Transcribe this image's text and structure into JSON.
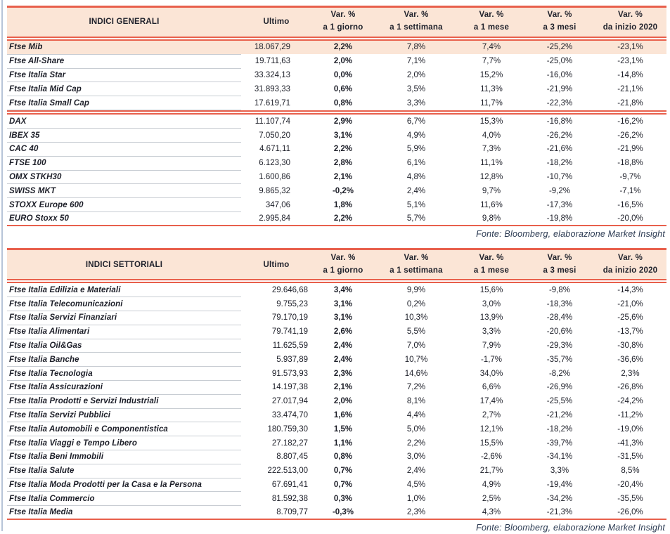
{
  "colors": {
    "accent_red": "#e8604c",
    "header_peach": "#fbe5d6",
    "text_ink": "#1c1e28",
    "fonte_navy": "#2b3a52",
    "row_separator": "#c8cdd3"
  },
  "tables": [
    {
      "title": "INDICI GENERALI",
      "headers": {
        "ultimo": "Ultimo",
        "vars": [
          {
            "line1": "Var. %",
            "line2": "a 1 giorno"
          },
          {
            "line1": "Var. %",
            "line2": "a 1 settimana"
          },
          {
            "line1": "Var. %",
            "line2": "a 1 mese"
          },
          {
            "line1": "Var. %",
            "line2": "a 3 mesi"
          },
          {
            "line1": "Var. %",
            "line2": "da inizio 2020"
          }
        ]
      },
      "groups": [
        [
          {
            "name": "Ftse Mib",
            "ultimo": "18.067,29",
            "vars": [
              "2,2%",
              "7,8%",
              "7,4%",
              "-25,2%",
              "-23,1%"
            ],
            "highlight": true
          },
          {
            "name": "Ftse All-Share",
            "ultimo": "19.711,63",
            "vars": [
              "2,0%",
              "7,1%",
              "7,7%",
              "-25,0%",
              "-23,1%"
            ]
          },
          {
            "name": "Ftse Italia Star",
            "ultimo": "33.324,13",
            "vars": [
              "0,0%",
              "2,0%",
              "15,2%",
              "-16,0%",
              "-14,8%"
            ]
          },
          {
            "name": "Ftse Italia Mid Cap",
            "ultimo": "31.893,33",
            "vars": [
              "0,6%",
              "3,5%",
              "11,3%",
              "-21,9%",
              "-21,1%"
            ]
          },
          {
            "name": "Ftse Italia Small Cap",
            "ultimo": "17.619,71",
            "vars": [
              "0,8%",
              "3,3%",
              "11,7%",
              "-22,3%",
              "-21,8%"
            ]
          }
        ],
        [
          {
            "name": "DAX",
            "ultimo": "11.107,74",
            "vars": [
              "2,9%",
              "6,7%",
              "15,3%",
              "-16,8%",
              "-16,2%"
            ]
          },
          {
            "name": "IBEX 35",
            "ultimo": "7.050,20",
            "vars": [
              "3,1%",
              "4,9%",
              "4,0%",
              "-26,2%",
              "-26,2%"
            ]
          },
          {
            "name": "CAC 40",
            "ultimo": "4.671,11",
            "vars": [
              "2,2%",
              "5,9%",
              "7,3%",
              "-21,6%",
              "-21,9%"
            ]
          },
          {
            "name": "FTSE 100",
            "ultimo": "6.123,30",
            "vars": [
              "2,8%",
              "6,1%",
              "11,1%",
              "-18,2%",
              "-18,8%"
            ]
          },
          {
            "name": "OMX STKH30",
            "ultimo": "1.600,86",
            "vars": [
              "2,1%",
              "4,8%",
              "12,8%",
              "-10,7%",
              "-9,7%"
            ]
          },
          {
            "name": "SWISS MKT",
            "ultimo": "9.865,32",
            "vars": [
              "-0,2%",
              "2,4%",
              "9,7%",
              "-9,2%",
              "-7,1%"
            ]
          },
          {
            "name": "STOXX Europe 600",
            "ultimo": "347,06",
            "vars": [
              "1,8%",
              "5,1%",
              "11,6%",
              "-17,3%",
              "-16,5%"
            ]
          },
          {
            "name": "EURO Stoxx 50",
            "ultimo": "2.995,84",
            "vars": [
              "2,2%",
              "5,7%",
              "9,8%",
              "-19,8%",
              "-20,0%"
            ]
          }
        ]
      ],
      "fonte": "Fonte: Bloomberg, elaborazione Market Insight"
    },
    {
      "title": "INDICI SETTORIALI",
      "headers": {
        "ultimo": "Ultimo",
        "vars": [
          {
            "line1": "Var. %",
            "line2": "a 1 giorno"
          },
          {
            "line1": "Var. %",
            "line2": "a 1 settimana"
          },
          {
            "line1": "Var. %",
            "line2": "a 1 mese"
          },
          {
            "line1": "Var. %",
            "line2": "a 3 mesi"
          },
          {
            "line1": "Var. %",
            "line2": "da inizio 2020"
          }
        ]
      },
      "groups": [
        [
          {
            "name": "Ftse Italia Edilizia e Materiali",
            "ultimo": "29.646,68",
            "vars": [
              "3,4%",
              "9,9%",
              "15,6%",
              "-9,8%",
              "-14,3%"
            ]
          },
          {
            "name": "Ftse Italia Telecomunicazioni",
            "ultimo": "9.755,23",
            "vars": [
              "3,1%",
              "0,2%",
              "3,0%",
              "-18,3%",
              "-21,0%"
            ]
          },
          {
            "name": "Ftse Italia Servizi Finanziari",
            "ultimo": "79.170,19",
            "vars": [
              "3,1%",
              "10,3%",
              "13,9%",
              "-28,4%",
              "-25,6%"
            ]
          },
          {
            "name": "Ftse Italia Alimentari",
            "ultimo": "79.741,19",
            "vars": [
              "2,6%",
              "5,5%",
              "3,3%",
              "-20,6%",
              "-13,7%"
            ]
          },
          {
            "name": "Ftse Italia Oil&Gas",
            "ultimo": "11.625,59",
            "vars": [
              "2,4%",
              "7,0%",
              "7,9%",
              "-29,3%",
              "-30,8%"
            ]
          },
          {
            "name": "Ftse Italia Banche",
            "ultimo": "5.937,89",
            "vars": [
              "2,4%",
              "10,7%",
              "-1,7%",
              "-35,7%",
              "-36,6%"
            ]
          },
          {
            "name": "Ftse Italia Tecnologia",
            "ultimo": "91.573,93",
            "vars": [
              "2,3%",
              "14,6%",
              "34,0%",
              "-8,2%",
              "2,3%"
            ]
          },
          {
            "name": "Ftse Italia Assicurazioni",
            "ultimo": "14.197,38",
            "vars": [
              "2,1%",
              "7,2%",
              "6,6%",
              "-26,9%",
              "-26,8%"
            ]
          },
          {
            "name": "Ftse Italia Prodotti e Servizi Industriali",
            "ultimo": "27.017,94",
            "vars": [
              "2,0%",
              "8,1%",
              "17,4%",
              "-25,5%",
              "-24,2%"
            ]
          },
          {
            "name": "Ftse Italia Servizi Pubblici",
            "ultimo": "33.474,70",
            "vars": [
              "1,6%",
              "4,4%",
              "2,7%",
              "-21,2%",
              "-11,2%"
            ]
          },
          {
            "name": "Ftse Italia Automobili e Componentistica",
            "ultimo": "180.759,30",
            "vars": [
              "1,5%",
              "5,0%",
              "12,1%",
              "-18,2%",
              "-19,0%"
            ]
          },
          {
            "name": "Ftse Italia Viaggi e Tempo Libero",
            "ultimo": "27.182,27",
            "vars": [
              "1,1%",
              "2,2%",
              "15,5%",
              "-39,7%",
              "-41,3%"
            ]
          },
          {
            "name": "Ftse Italia Beni Immobili",
            "ultimo": "8.807,45",
            "vars": [
              "0,8%",
              "3,0%",
              "-2,6%",
              "-34,1%",
              "-31,5%"
            ]
          },
          {
            "name": "Ftse Italia Salute",
            "ultimo": "222.513,00",
            "vars": [
              "0,7%",
              "2,4%",
              "21,7%",
              "3,3%",
              "8,5%"
            ]
          },
          {
            "name": "Ftse Italia Moda Prodotti per la Casa e la Persona",
            "ultimo": "67.691,41",
            "vars": [
              "0,7%",
              "4,5%",
              "4,9%",
              "-19,4%",
              "-20,4%"
            ]
          },
          {
            "name": "Ftse Italia Commercio",
            "ultimo": "81.592,38",
            "vars": [
              "0,3%",
              "1,0%",
              "2,5%",
              "-34,2%",
              "-35,5%"
            ]
          },
          {
            "name": "Ftse Italia Media",
            "ultimo": "8.709,77",
            "vars": [
              "-0,3%",
              "2,3%",
              "4,3%",
              "-21,3%",
              "-26,0%"
            ]
          }
        ]
      ],
      "fonte": "Fonte: Bloomberg, elaborazione Market Insight"
    }
  ]
}
